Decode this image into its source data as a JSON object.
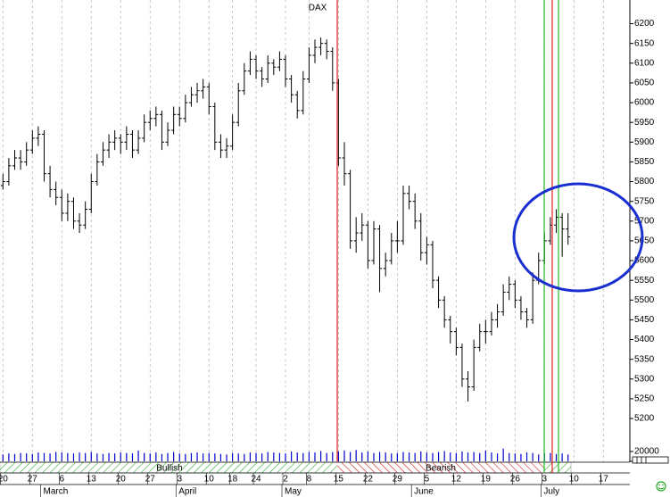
{
  "chart_data": {
    "type": "ohlc",
    "title": "DAX",
    "color": "#000000",
    "volume_color": "#0000cc",
    "grid": "x",
    "categories": [
      "20",
      null,
      null,
      null,
      null,
      "27",
      null,
      null,
      null,
      null,
      "6",
      null,
      null,
      null,
      null,
      "13",
      null,
      null,
      null,
      null,
      "20",
      null,
      null,
      null,
      null,
      "27",
      null,
      null,
      null,
      null,
      "3",
      null,
      null,
      null,
      null,
      "10",
      null,
      null,
      null,
      "18",
      null,
      null,
      null,
      "24",
      null,
      null,
      null,
      null,
      "2",
      null,
      null,
      null,
      "8",
      null,
      null,
      null,
      null,
      "15",
      null,
      null,
      null,
      null,
      "22",
      null,
      null,
      null,
      null,
      "29",
      null,
      null,
      null,
      null,
      "5",
      null,
      null,
      null,
      null,
      "12",
      null,
      null,
      null,
      null,
      "19",
      null,
      null,
      null,
      null,
      "26",
      null,
      null,
      null,
      null,
      "3",
      null,
      null,
      null,
      null,
      "10",
      null,
      null,
      null,
      null,
      "17",
      null,
      null,
      null,
      null
    ],
    "months": [
      null,
      null,
      null,
      null,
      null,
      null,
      null,
      "March",
      null,
      null,
      null,
      null,
      null,
      null,
      null,
      null,
      null,
      null,
      null,
      null,
      null,
      null,
      null,
      null,
      null,
      null,
      null,
      null,
      null,
      null,
      "April",
      null,
      null,
      null,
      null,
      null,
      null,
      null,
      null,
      null,
      null,
      null,
      null,
      null,
      null,
      null,
      null,
      null,
      "May",
      null,
      null,
      null,
      null,
      null,
      null,
      null,
      null,
      null,
      null,
      null,
      null,
      null,
      null,
      null,
      null,
      null,
      null,
      null,
      null,
      null,
      "June",
      null,
      null,
      null,
      null,
      null,
      null,
      null,
      null,
      null,
      null,
      null,
      null,
      null,
      null,
      null,
      null,
      null,
      null,
      null,
      null,
      null,
      "July",
      null,
      null,
      null,
      null,
      null,
      null,
      null,
      null,
      null,
      null,
      null,
      null,
      null,
      null
    ],
    "open": [
      5790,
      5800,
      5840,
      5860,
      5850,
      5880,
      5910,
      5920,
      5820,
      5780,
      5760,
      5720,
      5750,
      5700,
      5690,
      5730,
      5800,
      5850,
      5880,
      5900,
      5910,
      5900,
      5920,
      5880,
      5910,
      5950,
      5960,
      5970,
      5900,
      5930,
      5970,
      5960,
      6000,
      6020,
      6030,
      6040,
      5990,
      5900,
      5880,
      5890,
      5950,
      6030,
      6080,
      6110,
      6080,
      6060,
      6100,
      6090,
      6110,
      6060,
      6020,
      5980,
      6060,
      6120,
      6140,
      6150,
      6130,
      6050,
      5860,
      5820,
      5650,
      5670,
      5690,
      5600,
      5680,
      5580,
      5600,
      5650,
      5650,
      5770,
      5750,
      5700,
      5620,
      5640,
      5550,
      5500,
      5450,
      5420,
      5380,
      5300,
      5280,
      5380,
      5420,
      5420,
      5450,
      5470,
      5520,
      5540,
      5500,
      5470,
      5450,
      5550,
      5600,
      5650,
      5690,
      5710,
      5680,
      null,
      null,
      null,
      null,
      null,
      null,
      null,
      null,
      null,
      null
    ],
    "high": [
      5820,
      5860,
      5880,
      5880,
      5900,
      5930,
      5940,
      5930,
      5840,
      5800,
      5780,
      5770,
      5760,
      5720,
      5750,
      5820,
      5870,
      5900,
      5920,
      5930,
      5920,
      5940,
      5930,
      5930,
      5970,
      5980,
      5990,
      5980,
      5950,
      5990,
      5990,
      6020,
      6040,
      6050,
      6060,
      6050,
      6000,
      5920,
      5910,
      5970,
      6050,
      6100,
      6130,
      6120,
      6090,
      6120,
      6110,
      6130,
      6120,
      6070,
      6030,
      6080,
      6140,
      6160,
      6165,
      6160,
      6140,
      6060,
      5900,
      5830,
      5710,
      5720,
      5700,
      5700,
      5690,
      5620,
      5670,
      5700,
      5790,
      5790,
      5770,
      5720,
      5660,
      5650,
      5560,
      5510,
      5460,
      5430,
      5390,
      5320,
      5400,
      5440,
      5450,
      5470,
      5490,
      5540,
      5560,
      5550,
      5510,
      5480,
      5570,
      5620,
      5670,
      5710,
      5730,
      5720,
      5720,
      null,
      null,
      null,
      null,
      null,
      null,
      null,
      null,
      null,
      null
    ],
    "low": [
      5780,
      5790,
      5830,
      5830,
      5840,
      5870,
      5890,
      5800,
      5760,
      5740,
      5700,
      5700,
      5680,
      5670,
      5680,
      5720,
      5790,
      5840,
      5860,
      5880,
      5870,
      5880,
      5860,
      5870,
      5900,
      5930,
      5940,
      5880,
      5890,
      5920,
      5940,
      5950,
      5990,
      6000,
      6010,
      5970,
      5880,
      5860,
      5860,
      5880,
      5940,
      6020,
      6070,
      6060,
      6040,
      6050,
      6070,
      6080,
      6040,
      6000,
      5960,
      5970,
      6050,
      6100,
      6120,
      6110,
      6030,
      5840,
      5790,
      5630,
      5620,
      5650,
      5580,
      5590,
      5520,
      5560,
      5590,
      5620,
      5640,
      5730,
      5680,
      5600,
      5590,
      5530,
      5480,
      5430,
      5390,
      5360,
      5280,
      5243,
      5270,
      5370,
      5390,
      5410,
      5430,
      5460,
      5500,
      5480,
      5450,
      5430,
      5440,
      5540,
      5590,
      5640,
      5670,
      5610,
      5640,
      null,
      null,
      null,
      null,
      null,
      null,
      null,
      null,
      null,
      null
    ],
    "close": [
      5800,
      5840,
      5860,
      5850,
      5880,
      5910,
      5920,
      5820,
      5780,
      5760,
      5720,
      5750,
      5700,
      5690,
      5730,
      5800,
      5850,
      5880,
      5900,
      5910,
      5900,
      5920,
      5880,
      5910,
      5950,
      5960,
      5970,
      5900,
      5930,
      5970,
      5960,
      6000,
      6020,
      6030,
      6040,
      5990,
      5900,
      5880,
      5890,
      5950,
      6030,
      6080,
      6110,
      6080,
      6060,
      6100,
      6090,
      6110,
      6060,
      6020,
      5980,
      6060,
      6120,
      6140,
      6150,
      6130,
      6050,
      5860,
      5820,
      5650,
      5670,
      5690,
      5600,
      5680,
      5580,
      5600,
      5650,
      5650,
      5770,
      5750,
      5700,
      5620,
      5640,
      5550,
      5500,
      5450,
      5420,
      5380,
      5300,
      5280,
      5380,
      5420,
      5420,
      5450,
      5470,
      5520,
      5540,
      5500,
      5470,
      5450,
      5550,
      5600,
      5650,
      5690,
      5710,
      5680,
      5660,
      null,
      null,
      null,
      null,
      null,
      null,
      null,
      null,
      null,
      null
    ],
    "volume": [
      14000,
      16000,
      15000,
      17000,
      16000,
      15000,
      18000,
      17000,
      16000,
      19000,
      18000,
      17000,
      16000,
      18000,
      17000,
      19000,
      16000,
      15000,
      17000,
      16000,
      18000,
      17000,
      16000,
      22000,
      17000,
      16000,
      18000,
      15000,
      17000,
      19000,
      16000,
      15000,
      17000,
      18000,
      16000,
      17000,
      16000,
      15000,
      14000,
      17000,
      16000,
      15000,
      18000,
      17000,
      16000,
      19000,
      18000,
      17000,
      16000,
      20000,
      18000,
      17000,
      19000,
      18000,
      21000,
      17000,
      19000,
      20000,
      22000,
      19000,
      23000,
      18000,
      20000,
      17000,
      19000,
      18000,
      16000,
      17000,
      19000,
      18000,
      17000,
      20000,
      18000,
      17000,
      19000,
      21000,
      18000,
      17000,
      20000,
      18000,
      19000,
      17000,
      22000,
      18000,
      16000,
      26000,
      17000,
      16000,
      15000,
      18000,
      17000,
      14000,
      16000,
      17000,
      15000,
      16000,
      14000,
      null,
      null,
      null,
      null,
      null,
      null,
      null,
      null,
      null,
      null
    ],
    "ylim": [
      5130,
      6260
    ],
    "yticks": [
      5200,
      5250,
      5300,
      5350,
      5400,
      5450,
      5500,
      5550,
      5600,
      5650,
      5700,
      5750,
      5800,
      5850,
      5900,
      5950,
      6000,
      6050,
      6100,
      6150,
      6200
    ],
    "y2lim": [
      0,
      40000
    ],
    "y2ticks": [
      20000,
      0
    ],
    "bands": [
      {
        "label": "Bullish"
      },
      {
        "label": "Bearish"
      }
    ]
  }
}
